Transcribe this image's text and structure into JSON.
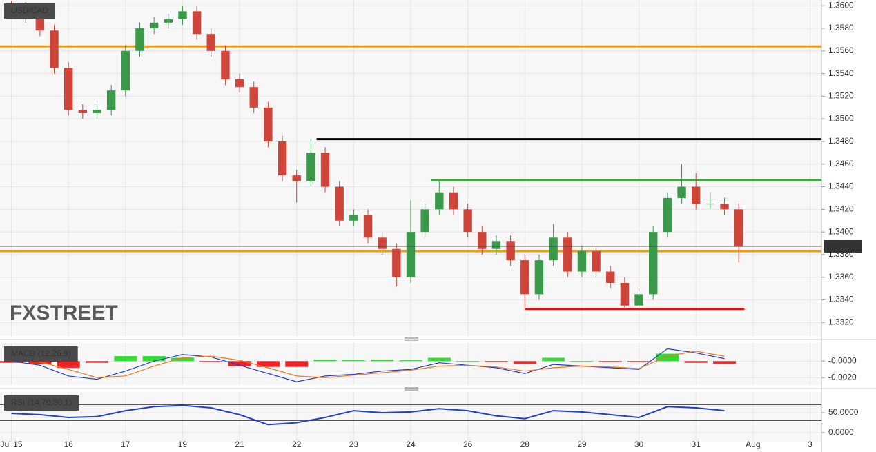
{
  "chart_data": [
    {
      "type": "candlestick",
      "title": "USD/CAD",
      "watermark": "FXSTREET",
      "up_color": "#3a9a4a",
      "down_color": "#d0453a",
      "x": [
        0,
        0.25,
        0.5,
        0.75,
        1,
        1.25,
        1.5,
        1.75,
        2,
        2.25,
        2.5,
        2.75,
        3,
        3.25,
        3.5,
        3.75,
        4,
        4.25,
        4.5,
        4.75,
        5,
        5.25,
        5.5,
        5.75,
        6,
        6.25,
        6.5,
        6.75,
        7,
        7.25,
        7.5,
        7.75,
        8,
        8.25,
        8.5,
        8.75,
        9,
        9.25,
        9.5,
        9.75,
        10,
        10.25,
        10.5,
        10.75,
        11,
        11.25,
        11.5,
        11.75,
        12,
        12.25,
        12.5,
        12.75
      ],
      "open": [
        1.3602,
        1.3598,
        1.359,
        1.3578,
        1.3545,
        1.3508,
        1.3505,
        1.3508,
        1.3525,
        1.356,
        1.358,
        1.3585,
        1.3588,
        1.3595,
        1.3575,
        1.356,
        1.3535,
        1.3528,
        1.351,
        1.348,
        1.345,
        1.3445,
        1.347,
        1.344,
        1.341,
        1.3415,
        1.3395,
        1.3385,
        1.336,
        1.34,
        1.342,
        1.3435,
        1.342,
        1.34,
        1.3385,
        1.3392,
        1.3375,
        1.3345,
        1.3375,
        1.3395,
        1.3365,
        1.3383,
        1.3365,
        1.3355,
        1.3335,
        1.3345,
        1.34,
        1.343,
        1.344,
        1.3425,
        1.3425,
        1.342
      ],
      "high": [
        1.3604,
        1.3603,
        1.3595,
        1.3583,
        1.355,
        1.3513,
        1.3513,
        1.353,
        1.3565,
        1.3585,
        1.359,
        1.3593,
        1.36,
        1.36,
        1.358,
        1.3565,
        1.354,
        1.3533,
        1.3515,
        1.3485,
        1.3455,
        1.3482,
        1.3475,
        1.3445,
        1.342,
        1.342,
        1.34,
        1.339,
        1.3428,
        1.3425,
        1.3445,
        1.344,
        1.3425,
        1.3405,
        1.3397,
        1.3397,
        1.338,
        1.338,
        1.3407,
        1.34,
        1.3388,
        1.3388,
        1.337,
        1.336,
        1.335,
        1.3405,
        1.3435,
        1.346,
        1.3452,
        1.3435,
        1.343,
        1.3425
      ],
      "low": [
        1.3593,
        1.3585,
        1.3573,
        1.354,
        1.3503,
        1.35,
        1.35,
        1.3503,
        1.352,
        1.3555,
        1.3575,
        1.358,
        1.3583,
        1.357,
        1.3555,
        1.353,
        1.3523,
        1.3505,
        1.3475,
        1.3445,
        1.3426,
        1.344,
        1.3435,
        1.3405,
        1.3405,
        1.339,
        1.338,
        1.3352,
        1.3355,
        1.3395,
        1.3415,
        1.3415,
        1.3395,
        1.338,
        1.338,
        1.337,
        1.3333,
        1.334,
        1.337,
        1.336,
        1.336,
        1.336,
        1.335,
        1.3332,
        1.3332,
        1.334,
        1.3395,
        1.3425,
        1.342,
        1.342,
        1.3415,
        1.3373
      ],
      "close": [
        1.3598,
        1.359,
        1.3578,
        1.3545,
        1.3508,
        1.3505,
        1.3508,
        1.3525,
        1.356,
        1.358,
        1.3585,
        1.3588,
        1.3595,
        1.3575,
        1.356,
        1.3535,
        1.3528,
        1.351,
        1.348,
        1.345,
        1.3445,
        1.347,
        1.344,
        1.341,
        1.3415,
        1.3395,
        1.3385,
        1.336,
        1.34,
        1.342,
        1.3435,
        1.342,
        1.34,
        1.3385,
        1.3392,
        1.3375,
        1.3345,
        1.3375,
        1.3395,
        1.3365,
        1.3383,
        1.3365,
        1.3355,
        1.3335,
        1.3345,
        1.34,
        1.343,
        1.344,
        1.3425,
        1.3425,
        1.342,
        1.3387
      ],
      "last_price": 1.33873,
      "levels": [
        {
          "value": 1.3564,
          "color": "#f39c12",
          "from": -0.2
        },
        {
          "value": 1.3383,
          "color": "#f39c12",
          "from": -0.2
        },
        {
          "value": 1.3482,
          "color": "#000000",
          "from": 5.35
        },
        {
          "value": 1.3446,
          "color": "#22bb22",
          "from": 7.35
        },
        {
          "value": 1.3332,
          "color": "#e01010",
          "from": 9.0,
          "to": 12.85
        }
      ],
      "xlim": [
        -0.2,
        14.2
      ],
      "ylim": [
        1.3308,
        1.3605
      ],
      "yticks": [
        {
          "value": 1.332,
          "label": "1.3320"
        },
        {
          "value": 1.334,
          "label": "1.3340"
        },
        {
          "value": 1.336,
          "label": "1.3360"
        },
        {
          "value": 1.338,
          "label": "1.3380"
        },
        {
          "value": 1.34,
          "label": "1.3400"
        },
        {
          "value": 1.342,
          "label": "1.3420"
        },
        {
          "value": 1.344,
          "label": "1.3440"
        },
        {
          "value": 1.346,
          "label": "1.3460"
        },
        {
          "value": 1.348,
          "label": "1.3480"
        },
        {
          "value": 1.35,
          "label": "1.3500"
        },
        {
          "value": 1.352,
          "label": "1.3520"
        },
        {
          "value": 1.354,
          "label": "1.3540"
        },
        {
          "value": 1.356,
          "label": "1.3560"
        },
        {
          "value": 1.358,
          "label": "1.3580"
        },
        {
          "value": 1.36,
          "label": "1.3600"
        }
      ],
      "grid": true
    },
    {
      "type": "macd",
      "title": "MACD (12,26,9)",
      "x": [
        0,
        0.5,
        1,
        1.5,
        2,
        2.5,
        3,
        3.5,
        4,
        4.5,
        5,
        5.5,
        6,
        6.5,
        7,
        7.5,
        8,
        8.5,
        9,
        9.5,
        10,
        10.5,
        11,
        11.5,
        12,
        12.5
      ],
      "series": [
        {
          "color": "#1f3fd0",
          "values": [
            0.0,
            -0.0005,
            -0.0018,
            -0.0022,
            -0.0012,
            0.0,
            0.0008,
            0.0005,
            -0.0005,
            -0.0015,
            -0.0025,
            -0.0018,
            -0.0016,
            -0.0012,
            -0.001,
            -0.0002,
            -0.0005,
            -0.0008,
            -0.0015,
            -0.0004,
            -0.0006,
            -0.0008,
            -0.001,
            0.0015,
            0.001,
            0.0003
          ]
        },
        {
          "color": "#f07820",
          "values": [
            0.0002,
            -0.0001,
            -0.001,
            -0.002,
            -0.0018,
            -0.0006,
            0.0004,
            0.0006,
            0.0001,
            -0.0008,
            -0.0018,
            -0.002,
            -0.0017,
            -0.0014,
            -0.0011,
            -0.0006,
            -0.0005,
            -0.0007,
            -0.0012,
            -0.0008,
            -0.0006,
            -0.0007,
            -0.0009,
            0.0006,
            0.0012,
            0.0006
          ]
        }
      ],
      "histogram": {
        "up_color": "#33dd33",
        "down_color": "#ee2222",
        "values": [
          -0.0002,
          -0.0004,
          -0.0008,
          -0.0002,
          0.0006,
          0.0006,
          0.0004,
          -0.0001,
          -0.0006,
          -0.0007,
          -0.0007,
          0.0002,
          0.0001,
          0.0002,
          0.0001,
          0.0004,
          0.0,
          -0.0001,
          -0.0003,
          0.0004,
          0.0,
          -0.0001,
          -0.0001,
          0.0009,
          -0.0002,
          -0.0003
        ]
      },
      "xlim": [
        -0.2,
        14.2
      ],
      "ylim": [
        -0.0029,
        0.0022
      ],
      "yticks": [
        {
          "value": -0.002,
          "label": "-0.0020"
        },
        {
          "value": 0,
          "label": "-0.0000"
        }
      ]
    },
    {
      "type": "rsi",
      "title": "RSI (14,70,30,1)",
      "x": [
        0,
        0.5,
        1,
        1.5,
        2,
        2.5,
        3,
        3.5,
        4,
        4.5,
        5,
        5.5,
        6,
        6.5,
        7,
        7.5,
        8,
        8.5,
        9,
        9.5,
        10,
        10.5,
        11,
        11.5,
        12,
        12.5
      ],
      "series": [
        {
          "color": "#1f3fd0",
          "values": [
            48,
            45,
            38,
            40,
            55,
            65,
            68,
            62,
            45,
            20,
            25,
            38,
            55,
            50,
            52,
            60,
            55,
            42,
            35,
            55,
            52,
            45,
            38,
            65,
            62,
            55
          ]
        }
      ],
      "levels": [
        70,
        30
      ],
      "xlim": [
        -0.2,
        14.2
      ],
      "ylim": [
        -22.4,
        101.7
      ],
      "yticks": [
        {
          "value": 0,
          "label": "0.0000"
        },
        {
          "value": 50,
          "label": "50.0000"
        }
      ],
      "xticks": [
        {
          "value": 0,
          "label": "Jul 15"
        },
        {
          "value": 1,
          "label": "16"
        },
        {
          "value": 2,
          "label": "17"
        },
        {
          "value": 3,
          "label": "19"
        },
        {
          "value": 4,
          "label": "21"
        },
        {
          "value": 5,
          "label": "22"
        },
        {
          "value": 6,
          "label": "23"
        },
        {
          "value": 7,
          "label": "24"
        },
        {
          "value": 8,
          "label": "26"
        },
        {
          "value": 9,
          "label": "28"
        },
        {
          "value": 10,
          "label": "29"
        },
        {
          "value": 11,
          "label": "30"
        },
        {
          "value": 12,
          "label": "31"
        },
        {
          "value": 13,
          "label": "Aug"
        },
        {
          "value": 14,
          "label": "3"
        }
      ]
    }
  ]
}
